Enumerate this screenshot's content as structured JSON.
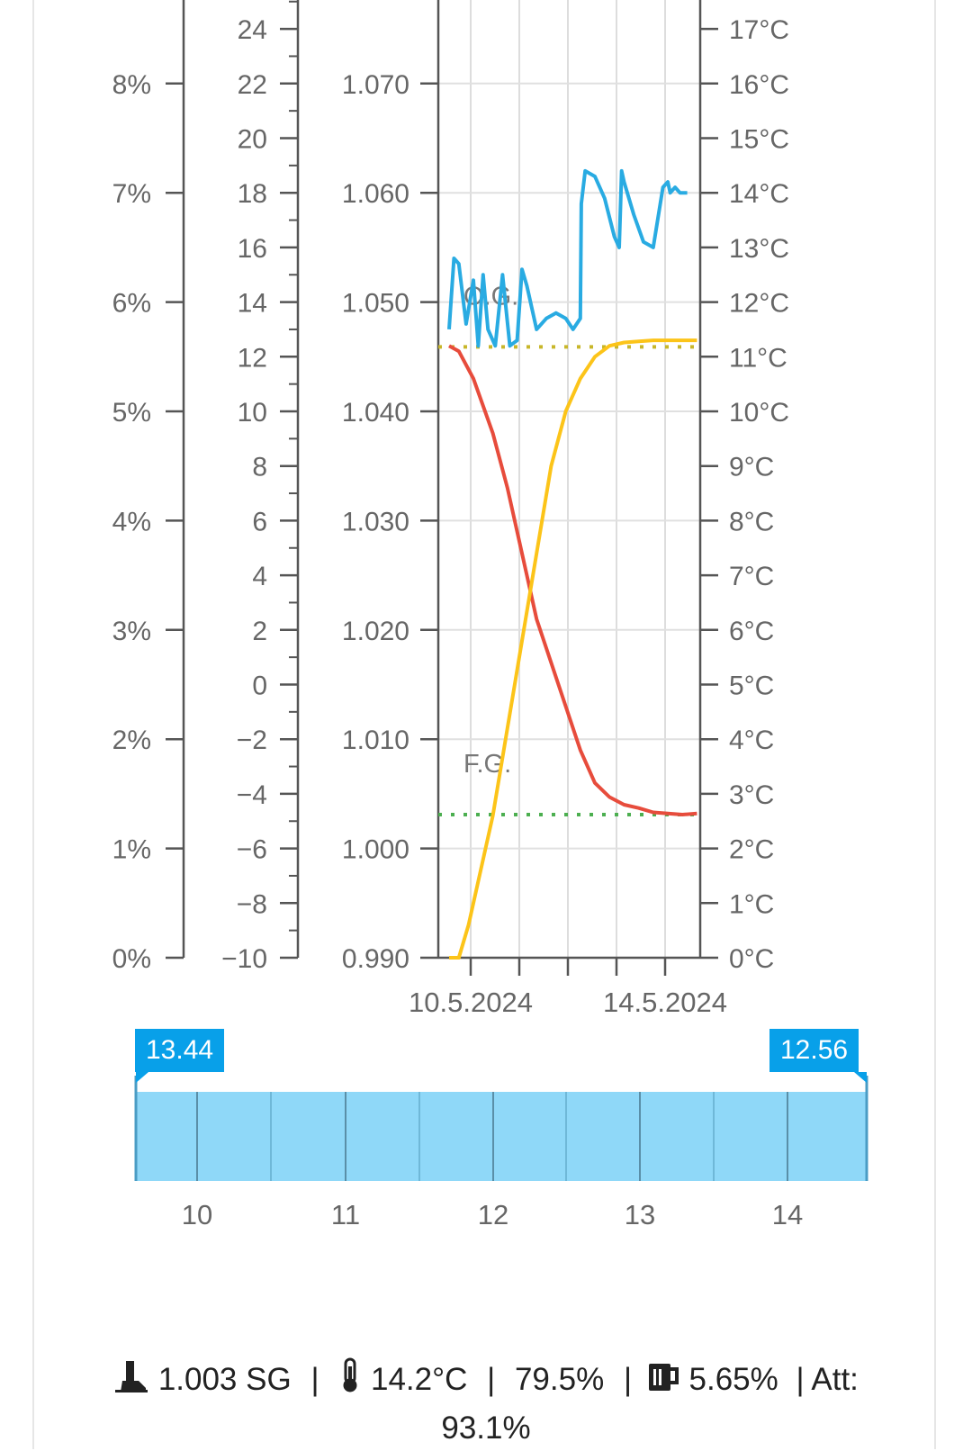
{
  "chart_data": {
    "type": "line",
    "x_axis": {
      "ticks": [
        "10.5.2024",
        "14.5.2024"
      ]
    },
    "axes": {
      "abv": {
        "ticks": [
          "0%",
          "1%",
          "2%",
          "3%",
          "4%",
          "5%",
          "6%",
          "7%",
          "8%"
        ]
      },
      "plato": {
        "ticks": [
          "-10",
          "-8",
          "-6",
          "-4",
          "-2",
          "0",
          "2",
          "4",
          "6",
          "8",
          "10",
          "12",
          "14",
          "16",
          "18",
          "20",
          "22",
          "24"
        ]
      },
      "gravity": {
        "range": [
          0.99,
          1.072
        ],
        "ticks": [
          "0.990",
          "1.000",
          "1.010",
          "1.020",
          "1.030",
          "1.040",
          "1.050",
          "1.060",
          "1.070"
        ]
      },
      "temperature": {
        "range": [
          0,
          17
        ],
        "ticks": [
          "0°C",
          "1°C",
          "2°C",
          "3°C",
          "4°C",
          "5°C",
          "6°C",
          "7°C",
          "8°C",
          "9°C",
          "10°C",
          "11°C",
          "12°C",
          "13°C",
          "14°C",
          "15°C",
          "16°C",
          "17°C"
        ]
      }
    },
    "series": [
      {
        "color": "#e74c3c",
        "axis": "gravity",
        "x": [
          0.0,
          0.2,
          0.5,
          0.9,
          1.2,
          1.5,
          1.8,
          2.1,
          2.4,
          2.7,
          3.0,
          3.3,
          3.6,
          3.9,
          4.2,
          4.5,
          4.8,
          5.1
        ],
        "y": [
          1.046,
          1.0455,
          1.043,
          1.038,
          1.033,
          1.027,
          1.021,
          1.017,
          1.013,
          1.009,
          1.006,
          1.0047,
          1.004,
          1.0037,
          1.0033,
          1.0032,
          1.0031,
          1.0032
        ]
      },
      {
        "color": "#fcc419",
        "axis": "abv",
        "x": [
          0.0,
          0.2,
          0.4,
          0.6,
          0.9,
          1.2,
          1.5,
          1.8,
          2.1,
          2.4,
          2.7,
          3.0,
          3.3,
          3.6,
          3.9,
          4.2,
          4.5,
          4.8,
          5.1
        ],
        "y": [
          0.0,
          0.0,
          0.3,
          0.7,
          1.3,
          2.1,
          2.9,
          3.7,
          4.5,
          5.0,
          5.3,
          5.5,
          5.6,
          5.63,
          5.64,
          5.65,
          5.65,
          5.65,
          5.65
        ]
      },
      {
        "color": "#29abe2",
        "axis": "temperature",
        "x": [
          0.0,
          0.1,
          0.2,
          0.35,
          0.5,
          0.6,
          0.7,
          0.8,
          0.95,
          1.1,
          1.25,
          1.4,
          1.5,
          1.6,
          1.8,
          2.0,
          2.2,
          2.4,
          2.55,
          2.7,
          2.72,
          2.8,
          3.0,
          3.2,
          3.4,
          3.5,
          3.55,
          3.6,
          3.8,
          4.0,
          4.2,
          4.4,
          4.5,
          4.55,
          4.65,
          4.75,
          4.85,
          4.9
        ],
        "y": [
          11.5,
          12.8,
          12.7,
          11.6,
          12.4,
          11.2,
          12.5,
          11.5,
          11.2,
          12.5,
          11.2,
          11.3,
          12.6,
          12.3,
          11.5,
          11.7,
          11.8,
          11.7,
          11.5,
          11.7,
          13.8,
          14.4,
          14.3,
          13.9,
          13.2,
          13.0,
          14.4,
          14.2,
          13.6,
          13.1,
          13.0,
          14.1,
          14.2,
          14.0,
          14.1,
          14.0,
          14.0,
          14.0
        ]
      }
    ],
    "reference_lines": [
      {
        "label": "O.G.",
        "value": 1.0459,
        "color": "#c8b62a"
      },
      {
        "label": "F.G.",
        "value": 1.0031,
        "color": "#4caf50"
      }
    ]
  },
  "navigator": {
    "left_label": "13.44",
    "right_label": "12.56",
    "ticks": [
      "10",
      "11",
      "12",
      "13",
      "14"
    ]
  },
  "status": {
    "gravity": "1.003 SG",
    "temperature": "14.2°C",
    "attenuation_percent": "79.5%",
    "abv": "5.65%",
    "att": "| Att:",
    "att_value": "93.1%",
    "sep": "|"
  }
}
